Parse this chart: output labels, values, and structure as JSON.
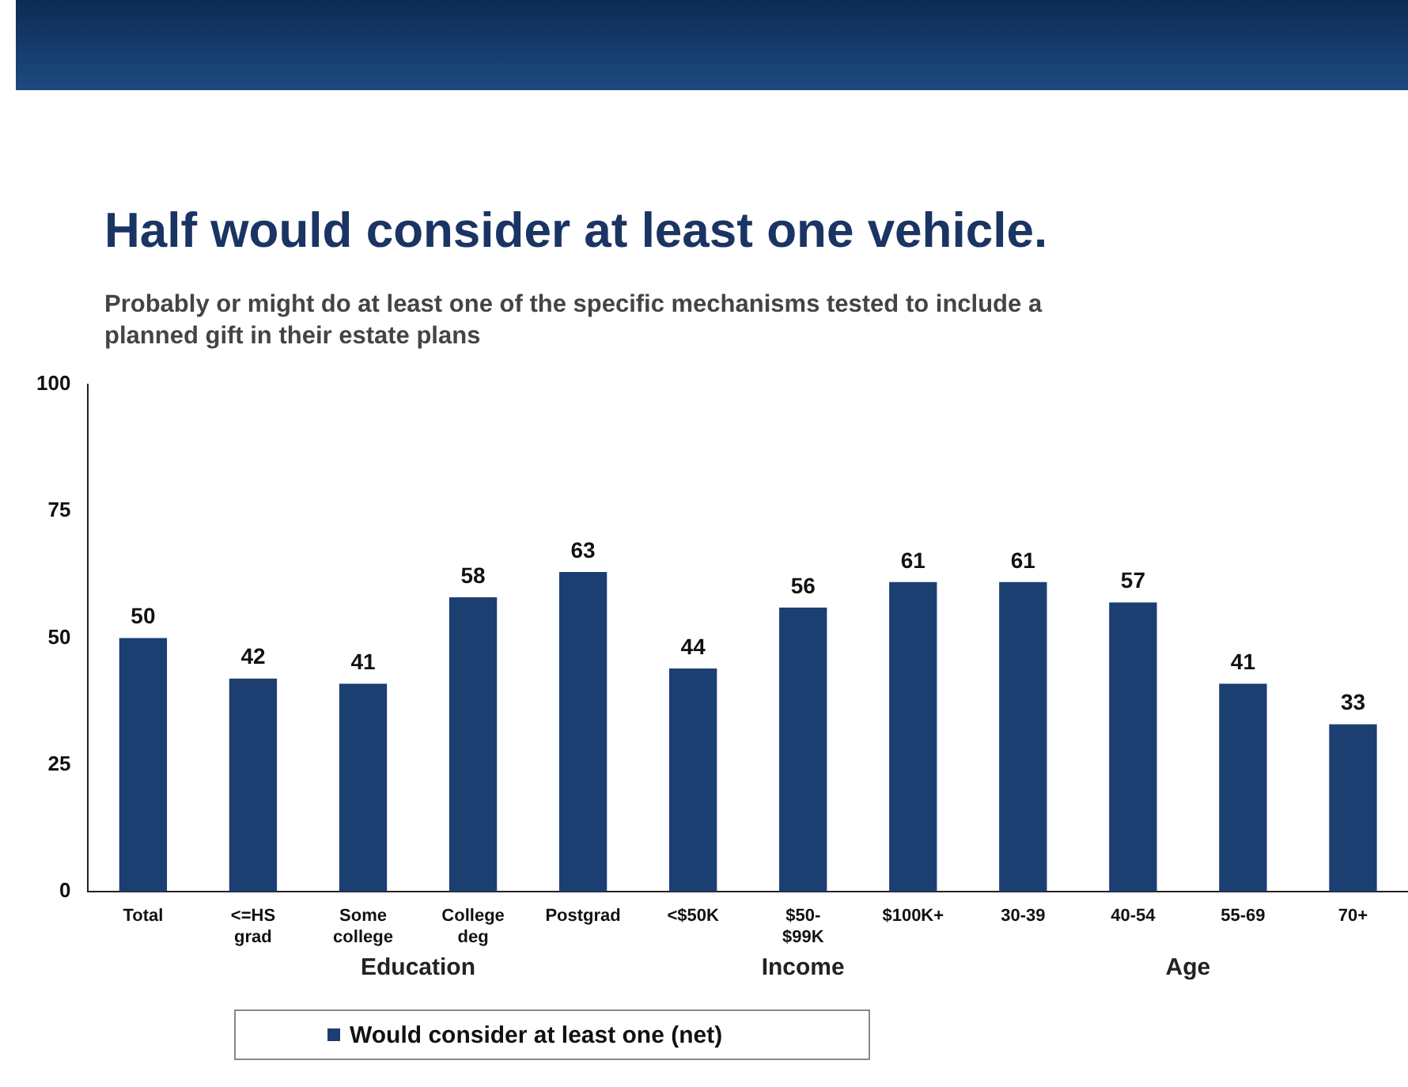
{
  "chart_data": {
    "type": "bar",
    "title": "Half would consider at least one vehicle.",
    "subtitle": "Probably or might do at least one of the specific mechanisms tested to include a planned gift in their estate plans",
    "categories": [
      "Total",
      "<=HS grad",
      "Some college",
      "College deg",
      "Postgrad",
      "<$50K",
      "$50-$99K",
      "$100K+",
      "30-39",
      "40-54",
      "55-69",
      "70+"
    ],
    "series": [
      {
        "name": "Would consider at least one (net)",
        "color": "#1c3f72",
        "values": [
          50,
          42,
          41,
          58,
          63,
          44,
          56,
          61,
          61,
          57,
          41,
          33
        ]
      }
    ],
    "ylim": [
      0,
      100
    ],
    "yticks": [
      0,
      25,
      50,
      75,
      100
    ],
    "grid": false,
    "legend": "bottom",
    "data_labels": true,
    "annotations": [
      "Education",
      "Income",
      "Age"
    ]
  }
}
